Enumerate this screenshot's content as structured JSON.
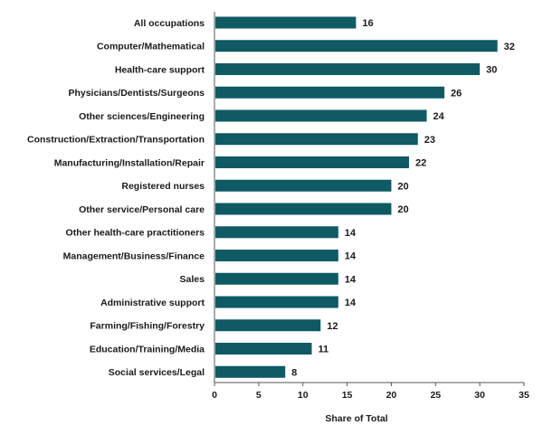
{
  "chart_data": {
    "type": "bar",
    "orientation": "horizontal",
    "xlabel": "Share of Total",
    "ylabel": "",
    "xlim": [
      0,
      35
    ],
    "xticks": [
      0,
      5,
      10,
      15,
      20,
      25,
      30,
      35
    ],
    "grid": false,
    "bar_color": "#0f5a63",
    "categories": [
      "All occupations",
      "Computer/Mathematical",
      "Health-care support",
      "Physicians/Dentists/Surgeons",
      "Other sciences/Engineering",
      "Construction/Extraction/Transportation",
      "Manufacturing/Installation/Repair",
      "Registered nurses",
      "Other service/Personal care",
      "Other health-care practitioners",
      "Management/Business/Finance",
      "Sales",
      "Administrative support",
      "Farming/Fishing/Forestry",
      "Education/Training/Media",
      "Social services/Legal"
    ],
    "values": [
      16,
      32,
      30,
      26,
      24,
      23,
      22,
      20,
      20,
      14,
      14,
      14,
      14,
      12,
      11,
      8
    ],
    "value_labels": [
      "16",
      "32",
      "30",
      "26",
      "24",
      "23",
      "22",
      "20",
      "20",
      "14",
      "14",
      "14",
      "14",
      "12",
      "11",
      "8"
    ]
  }
}
